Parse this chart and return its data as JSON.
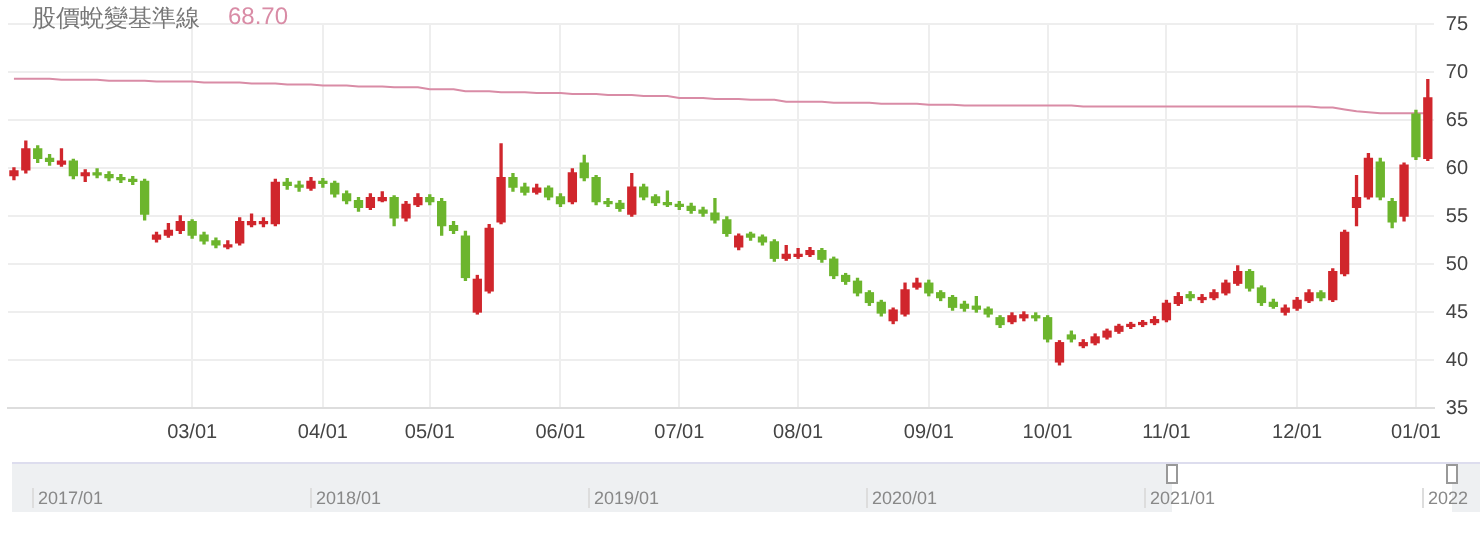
{
  "chart_data": {
    "type": "candlestick",
    "title": "股價蛻變基準線",
    "subtitle": "68.70",
    "categories": [
      null,
      null,
      null,
      null,
      null,
      null,
      null,
      null,
      null,
      null,
      null,
      null,
      null,
      null,
      null,
      "03/01",
      null,
      null,
      null,
      null,
      null,
      null,
      null,
      null,
      null,
      null,
      "04/01",
      null,
      null,
      null,
      null,
      null,
      null,
      null,
      null,
      "05/01",
      null,
      null,
      null,
      null,
      null,
      null,
      null,
      null,
      null,
      null,
      "06/01",
      null,
      null,
      null,
      null,
      null,
      null,
      null,
      null,
      null,
      "07/01",
      null,
      null,
      null,
      null,
      null,
      null,
      null,
      null,
      null,
      "08/01",
      null,
      null,
      null,
      null,
      null,
      null,
      null,
      null,
      null,
      null,
      "09/01",
      null,
      null,
      null,
      null,
      null,
      null,
      null,
      null,
      null,
      "10/01",
      null,
      null,
      null,
      null,
      null,
      null,
      null,
      null,
      null,
      "11/01",
      null,
      null,
      null,
      null,
      null,
      null,
      null,
      null,
      null,
      null,
      "12/01",
      null,
      null,
      null,
      null,
      null,
      null,
      null,
      null,
      null,
      "01/01",
      null
    ],
    "ohlc": [
      [
        59.2,
        60.0,
        58.8,
        59.7
      ],
      [
        59.8,
        62.8,
        59.5,
        62.0
      ],
      [
        62.0,
        62.3,
        60.6,
        61.0
      ],
      [
        61.0,
        61.4,
        60.3,
        60.7
      ],
      [
        60.4,
        62.0,
        60.2,
        60.7
      ],
      [
        60.7,
        60.9,
        58.9,
        59.2
      ],
      [
        59.2,
        59.8,
        58.6,
        59.5
      ],
      [
        59.5,
        59.9,
        59.0,
        59.3
      ],
      [
        59.3,
        59.6,
        58.7,
        59.0
      ],
      [
        59.0,
        59.3,
        58.5,
        58.8
      ],
      [
        58.8,
        59.1,
        58.3,
        58.6
      ],
      [
        58.6,
        58.8,
        54.6,
        55.2
      ],
      [
        52.6,
        53.3,
        52.3,
        53.0
      ],
      [
        53.0,
        54.2,
        52.8,
        53.5
      ],
      [
        53.5,
        55.0,
        53.2,
        54.4
      ],
      [
        54.4,
        54.6,
        52.7,
        53.0
      ],
      [
        53.0,
        53.3,
        52.1,
        52.4
      ],
      [
        52.4,
        52.7,
        51.7,
        52.0
      ],
      [
        51.8,
        52.4,
        51.6,
        52.0
      ],
      [
        52.2,
        54.8,
        52.0,
        54.4
      ],
      [
        54.1,
        55.2,
        53.9,
        54.4
      ],
      [
        54.2,
        54.8,
        53.9,
        54.4
      ],
      [
        54.2,
        58.8,
        54.0,
        58.5
      ],
      [
        58.5,
        58.9,
        57.8,
        58.2
      ],
      [
        58.2,
        58.6,
        57.6,
        58.0
      ],
      [
        57.9,
        59.0,
        57.7,
        58.6
      ],
      [
        58.6,
        58.9,
        58.0,
        58.4
      ],
      [
        58.4,
        58.6,
        57.0,
        57.3
      ],
      [
        57.3,
        57.6,
        56.3,
        56.6
      ],
      [
        56.6,
        56.9,
        55.5,
        55.9
      ],
      [
        55.9,
        57.3,
        55.7,
        56.9
      ],
      [
        56.6,
        57.5,
        56.5,
        56.9
      ],
      [
        56.9,
        57.1,
        54.0,
        54.8
      ],
      [
        54.8,
        56.5,
        54.5,
        56.2
      ],
      [
        56.2,
        57.3,
        56.0,
        56.9
      ],
      [
        56.9,
        57.2,
        56.2,
        56.5
      ],
      [
        56.5,
        56.8,
        53.0,
        54.0
      ],
      [
        54.0,
        54.4,
        53.2,
        53.5
      ],
      [
        52.9,
        53.4,
        48.3,
        48.6
      ],
      [
        45.0,
        48.8,
        44.8,
        48.4
      ],
      [
        47.2,
        54.1,
        47.0,
        53.7
      ],
      [
        54.4,
        62.5,
        54.2,
        59.0
      ],
      [
        59.0,
        59.4,
        57.6,
        58.0
      ],
      [
        58.0,
        58.4,
        57.2,
        57.5
      ],
      [
        57.5,
        58.3,
        57.3,
        57.9
      ],
      [
        57.9,
        58.1,
        56.7,
        57.0
      ],
      [
        57.0,
        57.3,
        56.0,
        56.3
      ],
      [
        56.5,
        59.9,
        56.3,
        59.5
      ],
      [
        60.5,
        61.3,
        58.7,
        59.0
      ],
      [
        59.0,
        59.2,
        56.2,
        56.5
      ],
      [
        56.5,
        56.8,
        56.0,
        56.3
      ],
      [
        56.3,
        56.6,
        55.5,
        55.8
      ],
      [
        55.2,
        59.4,
        55.0,
        58.0
      ],
      [
        58.0,
        58.3,
        56.7,
        57.0
      ],
      [
        57.0,
        57.2,
        56.1,
        56.4
      ],
      [
        56.4,
        57.6,
        56.0,
        56.2
      ],
      [
        56.2,
        56.5,
        55.7,
        56.0
      ],
      [
        56.0,
        56.3,
        55.3,
        55.6
      ],
      [
        55.6,
        55.9,
        55.0,
        55.3
      ],
      [
        55.3,
        56.8,
        54.3,
        54.6
      ],
      [
        54.6,
        54.9,
        52.9,
        53.2
      ],
      [
        51.8,
        53.1,
        51.5,
        52.9
      ],
      [
        53.1,
        53.3,
        52.5,
        52.8
      ],
      [
        52.8,
        53.0,
        52.0,
        52.3
      ],
      [
        52.3,
        52.5,
        50.3,
        50.6
      ],
      [
        50.6,
        51.9,
        50.4,
        51.0
      ],
      [
        50.8,
        51.6,
        50.6,
        51.0
      ],
      [
        51.0,
        51.7,
        50.8,
        51.4
      ],
      [
        51.4,
        51.6,
        50.2,
        50.5
      ],
      [
        50.5,
        50.7,
        48.5,
        48.8
      ],
      [
        48.8,
        49.0,
        47.9,
        48.2
      ],
      [
        48.2,
        48.5,
        46.7,
        47.0
      ],
      [
        47.0,
        47.2,
        45.7,
        46.0
      ],
      [
        46.0,
        46.2,
        44.6,
        44.9
      ],
      [
        44.1,
        45.4,
        43.8,
        45.2
      ],
      [
        44.8,
        48.0,
        44.6,
        47.3
      ],
      [
        47.6,
        48.5,
        47.4,
        48.0
      ],
      [
        48.0,
        48.3,
        46.7,
        47.0
      ],
      [
        47.0,
        47.2,
        46.2,
        46.5
      ],
      [
        46.5,
        46.7,
        45.2,
        45.5
      ],
      [
        45.8,
        46.1,
        45.1,
        45.4
      ],
      [
        45.6,
        46.6,
        45.0,
        45.3
      ],
      [
        45.3,
        45.5,
        44.5,
        44.8
      ],
      [
        44.4,
        44.6,
        43.4,
        43.7
      ],
      [
        44.0,
        44.9,
        43.8,
        44.6
      ],
      [
        44.4,
        45.0,
        44.1,
        44.7
      ],
      [
        44.6,
        44.9,
        44.1,
        44.4
      ],
      [
        44.4,
        44.6,
        41.9,
        42.2
      ],
      [
        39.8,
        42.0,
        39.5,
        41.8
      ],
      [
        42.6,
        43.0,
        41.9,
        42.2
      ],
      [
        41.5,
        42.1,
        41.3,
        41.8
      ],
      [
        41.8,
        42.7,
        41.6,
        42.4
      ],
      [
        42.4,
        43.2,
        42.2,
        43.0
      ],
      [
        43.0,
        43.7,
        42.8,
        43.5
      ],
      [
        43.5,
        43.9,
        43.3,
        43.7
      ],
      [
        43.7,
        44.1,
        43.5,
        43.9
      ],
      [
        43.9,
        44.5,
        43.7,
        44.2
      ],
      [
        44.2,
        46.2,
        44.0,
        45.9
      ],
      [
        45.9,
        47.0,
        45.7,
        46.6
      ],
      [
        46.8,
        47.1,
        46.2,
        46.5
      ],
      [
        46.3,
        46.8,
        46.0,
        46.5
      ],
      [
        46.5,
        47.3,
        46.3,
        47.0
      ],
      [
        47.0,
        48.3,
        46.8,
        48.0
      ],
      [
        48.0,
        49.8,
        47.8,
        49.2
      ],
      [
        49.2,
        49.4,
        47.2,
        47.5
      ],
      [
        47.5,
        47.7,
        45.7,
        46.0
      ],
      [
        46.0,
        46.3,
        45.4,
        45.6
      ],
      [
        45.0,
        45.7,
        44.7,
        45.4
      ],
      [
        45.4,
        46.5,
        45.2,
        46.2
      ],
      [
        46.2,
        47.3,
        46.0,
        47.0
      ],
      [
        47.0,
        47.2,
        46.2,
        46.5
      ],
      [
        46.3,
        49.5,
        46.1,
        49.2
      ],
      [
        49.0,
        53.5,
        48.8,
        53.3
      ],
      [
        55.9,
        59.2,
        54.0,
        56.9
      ],
      [
        57.0,
        61.5,
        56.8,
        61.0
      ],
      [
        60.6,
        61.0,
        56.7,
        57.0
      ],
      [
        56.5,
        56.8,
        53.8,
        54.4
      ],
      [
        55.0,
        60.5,
        54.5,
        60.3
      ],
      [
        65.6,
        66.0,
        60.9,
        61.2
      ],
      [
        61.0,
        69.2,
        60.8,
        67.3
      ]
    ],
    "colors": [
      "#d0262c",
      "#d0262c",
      "#6cb52d",
      "#6cb52d",
      "#d0262c",
      "#6cb52d",
      "#d0262c",
      "#6cb52d",
      "#6cb52d",
      "#6cb52d",
      "#6cb52d",
      "#6cb52d",
      "#d0262c",
      "#d0262c",
      "#d0262c",
      "#6cb52d",
      "#6cb52d",
      "#6cb52d",
      "#d0262c",
      "#d0262c",
      "#d0262c",
      "#d0262c",
      "#d0262c",
      "#6cb52d",
      "#6cb52d",
      "#d0262c",
      "#6cb52d",
      "#6cb52d",
      "#6cb52d",
      "#6cb52d",
      "#d0262c",
      "#d0262c",
      "#6cb52d",
      "#d0262c",
      "#d0262c",
      "#6cb52d",
      "#6cb52d",
      "#6cb52d",
      "#6cb52d",
      "#d0262c",
      "#d0262c",
      "#d0262c",
      "#6cb52d",
      "#6cb52d",
      "#d0262c",
      "#6cb52d",
      "#6cb52d",
      "#d0262c",
      "#6cb52d",
      "#6cb52d",
      "#6cb52d",
      "#6cb52d",
      "#d0262c",
      "#6cb52d",
      "#6cb52d",
      "#6cb52d",
      "#6cb52d",
      "#6cb52d",
      "#6cb52d",
      "#6cb52d",
      "#6cb52d",
      "#d0262c",
      "#6cb52d",
      "#6cb52d",
      "#6cb52d",
      "#d0262c",
      "#d0262c",
      "#d0262c",
      "#6cb52d",
      "#6cb52d",
      "#6cb52d",
      "#6cb52d",
      "#6cb52d",
      "#6cb52d",
      "#d0262c",
      "#d0262c",
      "#d0262c",
      "#6cb52d",
      "#6cb52d",
      "#6cb52d",
      "#6cb52d",
      "#6cb52d",
      "#6cb52d",
      "#6cb52d",
      "#d0262c",
      "#d0262c",
      "#6cb52d",
      "#6cb52d",
      "#d0262c",
      "#6cb52d",
      "#d0262c",
      "#d0262c",
      "#d0262c",
      "#d0262c",
      "#d0262c",
      "#d0262c",
      "#d0262c",
      "#d0262c",
      "#d0262c",
      "#6cb52d",
      "#d0262c",
      "#d0262c",
      "#d0262c",
      "#d0262c",
      "#6cb52d",
      "#6cb52d",
      "#6cb52d",
      "#d0262c",
      "#d0262c",
      "#d0262c",
      "#6cb52d",
      "#d0262c",
      "#d0262c",
      "#d0262c",
      "#d0262c",
      "#6cb52d",
      "#6cb52d",
      "#d0262c",
      "#6cb52d",
      "#d0262c"
    ],
    "series": [
      {
        "type": "line",
        "color": "#d98ca6",
        "values": [
          69.3,
          69.3,
          69.3,
          69.3,
          69.2,
          69.2,
          69.2,
          69.2,
          69.1,
          69.1,
          69.1,
          69.1,
          69.0,
          69.0,
          69.0,
          69.0,
          68.9,
          68.9,
          68.9,
          68.9,
          68.8,
          68.8,
          68.8,
          68.7,
          68.7,
          68.7,
          68.6,
          68.6,
          68.6,
          68.5,
          68.5,
          68.5,
          68.4,
          68.4,
          68.4,
          68.2,
          68.2,
          68.2,
          68.0,
          68.0,
          68.0,
          67.9,
          67.9,
          67.9,
          67.8,
          67.8,
          67.8,
          67.7,
          67.7,
          67.7,
          67.6,
          67.6,
          67.6,
          67.5,
          67.5,
          67.5,
          67.3,
          67.3,
          67.3,
          67.2,
          67.2,
          67.2,
          67.1,
          67.1,
          67.1,
          66.9,
          66.9,
          66.9,
          66.9,
          66.8,
          66.8,
          66.8,
          66.8,
          66.7,
          66.7,
          66.7,
          66.7,
          66.6,
          66.6,
          66.6,
          66.5,
          66.5,
          66.5,
          66.5,
          66.5,
          66.5,
          66.5,
          66.5,
          66.5,
          66.5,
          66.4,
          66.4,
          66.4,
          66.4,
          66.4,
          66.4,
          66.4,
          66.4,
          66.4,
          66.4,
          66.4,
          66.4,
          66.4,
          66.4,
          66.4,
          66.4,
          66.4,
          66.4,
          66.4,
          66.4,
          66.3,
          66.3,
          66.1,
          65.9,
          65.8,
          65.7,
          65.7,
          65.7,
          65.7,
          65.7
        ]
      }
    ],
    "ylim": [
      35,
      75
    ],
    "yticks": [
      35,
      40,
      45,
      50,
      55,
      60,
      65,
      70,
      75
    ],
    "grid": true,
    "legend": false,
    "annotations": [
      "2017/01",
      "2018/01",
      "2019/01",
      "2020/01",
      "2021/01",
      "2022"
    ]
  }
}
